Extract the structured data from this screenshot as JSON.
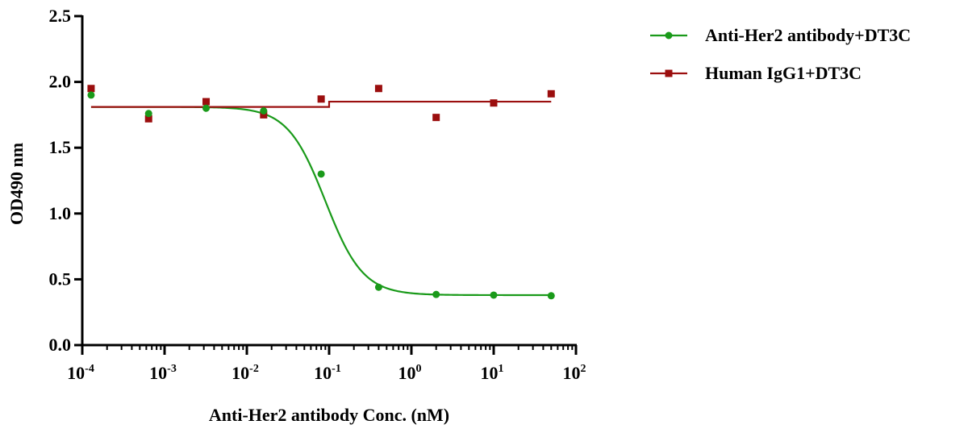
{
  "chart_data": {
    "type": "scatter",
    "xlabel": "Anti-Her2 antibody Conc. (nM)",
    "ylabel": "OD490 nm",
    "xscale": "log",
    "xlim": [
      0.0001,
      100
    ],
    "ylim": [
      0,
      2.5
    ],
    "grid": false,
    "legend_position": "top-right",
    "x_ticks": [
      {
        "base": "10",
        "exp": "-4",
        "value": 0.0001
      },
      {
        "base": "10",
        "exp": "-3",
        "value": 0.001
      },
      {
        "base": "10",
        "exp": "-2",
        "value": 0.01
      },
      {
        "base": "10",
        "exp": "-1",
        "value": 0.1
      },
      {
        "base": "10",
        "exp": "0",
        "value": 1
      },
      {
        "base": "10",
        "exp": "1",
        "value": 10
      },
      {
        "base": "10",
        "exp": "2",
        "value": 100
      }
    ],
    "y_ticks": [
      {
        "label": "0.0",
        "value": 0
      },
      {
        "label": "0.5",
        "value": 0.5
      },
      {
        "label": "1.0",
        "value": 1.0
      },
      {
        "label": "1.5",
        "value": 1.5
      },
      {
        "label": "2.0",
        "value": 2.0
      },
      {
        "label": "2.5",
        "value": 2.5
      }
    ],
    "series": [
      {
        "name": "Anti-Her2 antibody+DT3C",
        "color": "#1a9a1a",
        "marker": "circle",
        "fit": "sigmoid",
        "fit_params": {
          "top": 1.81,
          "bottom": 0.38,
          "ec50": 0.09,
          "hill": 1.9
        },
        "x": [
          0.000128,
          0.00064,
          0.0032,
          0.016,
          0.08,
          0.4,
          2,
          10,
          50
        ],
        "y": [
          1.9,
          1.76,
          1.8,
          1.78,
          1.3,
          0.44,
          0.385,
          0.38,
          0.375
        ]
      },
      {
        "name": "Human IgG1+DT3C",
        "color": "#9b0e0e",
        "marker": "square",
        "fit": "step",
        "fit_params": {
          "y_low": 1.81,
          "y_high": 1.85,
          "step_x": 0.1
        },
        "x": [
          0.000128,
          0.00064,
          0.0032,
          0.016,
          0.08,
          0.4,
          2,
          10,
          50
        ],
        "y": [
          1.95,
          1.72,
          1.85,
          1.75,
          1.87,
          1.95,
          1.73,
          1.84,
          1.91
        ]
      }
    ]
  }
}
